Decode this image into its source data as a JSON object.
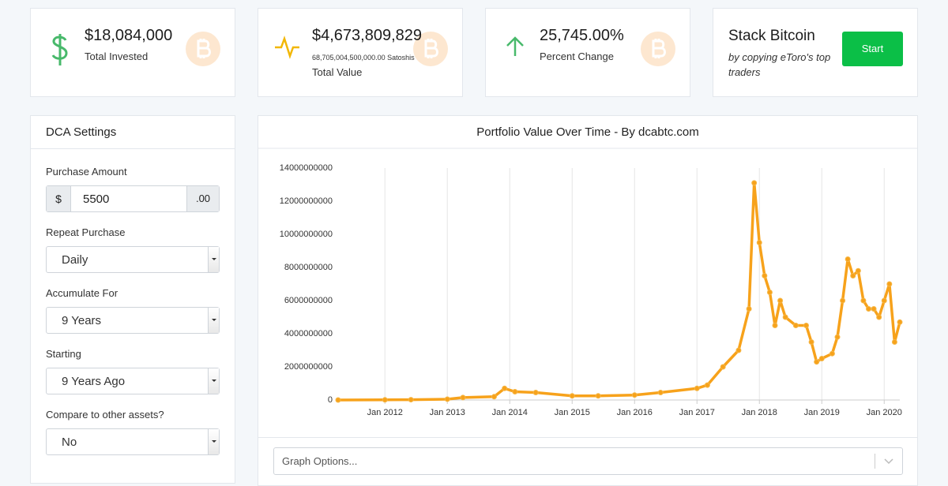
{
  "stats": [
    {
      "value": "$18,084,000",
      "label": "Total Invested"
    },
    {
      "value": "$4,673,809,829",
      "sub": "68,705,004,500,000.00 Satoshis",
      "label": "Total Value"
    },
    {
      "value": "25,745.00%",
      "label": "Percent Change"
    }
  ],
  "promo": {
    "title": "Stack Bitcoin",
    "text": "by copying eToro's top traders",
    "button": "Start"
  },
  "settings": {
    "title": "DCA Settings",
    "amount": {
      "label": "Purchase Amount",
      "prefix": "$",
      "value": "5500",
      "suffix": ".00"
    },
    "selects": [
      {
        "label": "Repeat Purchase",
        "value": "Daily"
      },
      {
        "label": "Accumulate For",
        "value": "9 Years"
      },
      {
        "label": "Starting",
        "value": "9 Years Ago"
      },
      {
        "label": "Compare to other assets?",
        "value": "No"
      }
    ]
  },
  "graph_options": "Graph Options...",
  "chart_data": {
    "type": "line",
    "title": "Portfolio Value Over Time - By dcabtc.com",
    "x": [
      "2011-04",
      "2012-01",
      "2012-06",
      "2013-01",
      "2013-04",
      "2013-10",
      "2013-12",
      "2014-02",
      "2014-06",
      "2015-01",
      "2015-06",
      "2016-01",
      "2016-06",
      "2017-01",
      "2017-03",
      "2017-06",
      "2017-09",
      "2017-11",
      "2017-12",
      "2018-01",
      "2018-02",
      "2018-03",
      "2018-04",
      "2018-05",
      "2018-06",
      "2018-08",
      "2018-10",
      "2018-11",
      "2018-12",
      "2019-01",
      "2019-03",
      "2019-04",
      "2019-05",
      "2019-06",
      "2019-07",
      "2019-08",
      "2019-09",
      "2019-10",
      "2019-11",
      "2019-12",
      "2020-01",
      "2020-02",
      "2020-03",
      "2020-04"
    ],
    "series": [
      {
        "name": "Portfolio Value",
        "color": "#f7a21b",
        "values": [
          0,
          10000000,
          20000000,
          50000000,
          150000000,
          200000000,
          700000000,
          500000000,
          450000000,
          250000000,
          250000000,
          300000000,
          450000000,
          700000000,
          900000000,
          2000000000,
          3000000000,
          5500000000,
          13100000000,
          9500000000,
          7500000000,
          6500000000,
          4500000000,
          6000000000,
          5000000000,
          4500000000,
          4500000000,
          3500000000,
          2300000000,
          2500000000,
          2800000000,
          3800000000,
          6000000000,
          8500000000,
          7500000000,
          7800000000,
          6000000000,
          5500000000,
          5500000000,
          5000000000,
          6000000000,
          7000000000,
          3500000000,
          4700000000
        ]
      }
    ],
    "xlim": [
      "2011-04",
      "2020-04"
    ],
    "xticks": [
      {
        "value": "2012-01",
        "label": "Jan 2012"
      },
      {
        "value": "2013-01",
        "label": "Jan 2013"
      },
      {
        "value": "2014-01",
        "label": "Jan 2014"
      },
      {
        "value": "2015-01",
        "label": "Jan 2015"
      },
      {
        "value": "2016-01",
        "label": "Jan 2016"
      },
      {
        "value": "2017-01",
        "label": "Jan 2017"
      },
      {
        "value": "2018-01",
        "label": "Jan 2018"
      },
      {
        "value": "2019-01",
        "label": "Jan 2019"
      },
      {
        "value": "2020-01",
        "label": "Jan 2020"
      }
    ],
    "ylim": [
      0,
      14000000000
    ],
    "yticks": [
      0,
      2000000000,
      4000000000,
      6000000000,
      8000000000,
      10000000000,
      12000000000,
      14000000000
    ],
    "grid": true
  }
}
